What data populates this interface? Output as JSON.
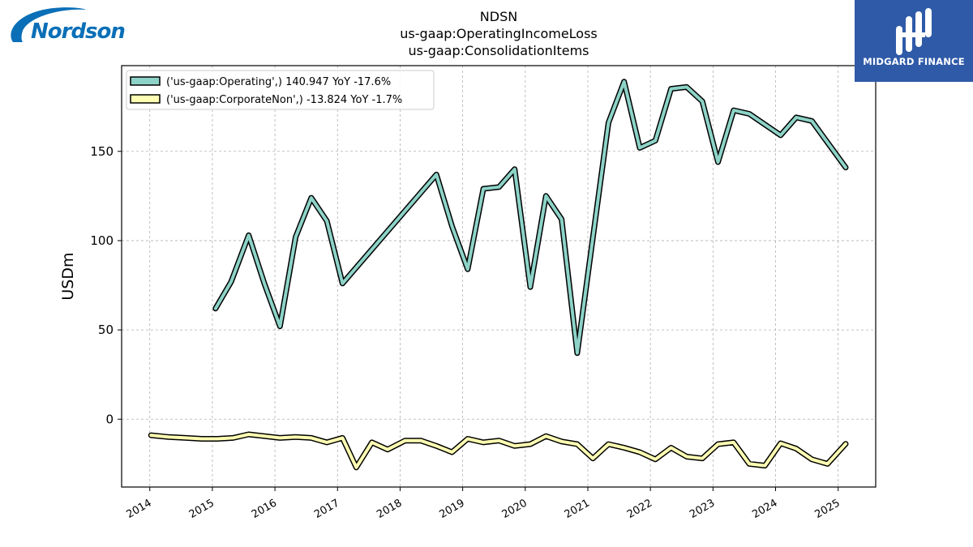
{
  "logos": {
    "left": {
      "text": "Nordson",
      "color": "#0a6fb7"
    },
    "right": {
      "text": "MIDGARD FINANCE",
      "background": "#2f5aa8"
    }
  },
  "chart_data": {
    "type": "line",
    "title_lines": [
      "NDSN",
      "us-gaap:OperatingIncomeLoss",
      "us-gaap:ConsolidationItems"
    ],
    "xlabel": "",
    "ylabel": "USDm",
    "xlim": [
      2013.55,
      2025.6
    ],
    "ylim": [
      -38,
      198
    ],
    "xticks": [
      2014,
      2015,
      2016,
      2017,
      2018,
      2019,
      2020,
      2021,
      2022,
      2023,
      2024,
      2025
    ],
    "xtick_labels": [
      "2014",
      "2015",
      "2016",
      "2017",
      "2018",
      "2019",
      "2020",
      "2021",
      "2022",
      "2023",
      "2024",
      "2025"
    ],
    "yticks": [
      0,
      50,
      100,
      150
    ],
    "ytick_labels": [
      "0",
      "50",
      "100",
      "150"
    ],
    "grid": true,
    "legend_position": "top-left",
    "series": [
      {
        "name": "('us-gaap:Operating',) 140.947 YoY -17.6%",
        "color": "#8dd3c7",
        "points": [
          [
            2015.05,
            62
          ],
          [
            2015.3,
            77
          ],
          [
            2015.58,
            103
          ],
          [
            2015.83,
            76
          ],
          [
            2016.08,
            52
          ],
          [
            2016.33,
            102
          ],
          [
            2016.58,
            124
          ],
          [
            2016.83,
            111
          ],
          [
            2017.08,
            76
          ],
          [
            2018.58,
            137
          ],
          [
            2018.83,
            108
          ],
          [
            2019.08,
            84
          ],
          [
            2019.33,
            129
          ],
          [
            2019.58,
            130
          ],
          [
            2019.83,
            140
          ],
          [
            2020.08,
            74
          ],
          [
            2020.33,
            125
          ],
          [
            2020.58,
            112
          ],
          [
            2020.83,
            37
          ],
          [
            2021.33,
            166
          ],
          [
            2021.58,
            189
          ],
          [
            2021.83,
            152
          ],
          [
            2022.08,
            156
          ],
          [
            2022.33,
            185
          ],
          [
            2022.58,
            186
          ],
          [
            2022.83,
            178
          ],
          [
            2023.08,
            144
          ],
          [
            2023.33,
            173
          ],
          [
            2023.58,
            171
          ],
          [
            2024.08,
            159
          ],
          [
            2024.33,
            169
          ],
          [
            2024.58,
            167
          ],
          [
            2025.12,
            140.947
          ]
        ]
      },
      {
        "name": "('us-gaap:CorporateNon',) -13.824 YoY -1.7%",
        "color": "#ffffb3",
        "points": [
          [
            2014.02,
            -9
          ],
          [
            2014.3,
            -10
          ],
          [
            2014.58,
            -10.5
          ],
          [
            2014.83,
            -11
          ],
          [
            2015.08,
            -11
          ],
          [
            2015.33,
            -10.5
          ],
          [
            2015.58,
            -8.5
          ],
          [
            2015.83,
            -9.5
          ],
          [
            2016.08,
            -10.5
          ],
          [
            2016.33,
            -10
          ],
          [
            2016.58,
            -10.5
          ],
          [
            2016.83,
            -13
          ],
          [
            2017.08,
            -10.5
          ],
          [
            2017.3,
            -27
          ],
          [
            2017.55,
            -13
          ],
          [
            2017.8,
            -17
          ],
          [
            2018.08,
            -12
          ],
          [
            2018.33,
            -12
          ],
          [
            2018.58,
            -15
          ],
          [
            2018.83,
            -18.5
          ],
          [
            2019.08,
            -11
          ],
          [
            2019.33,
            -13
          ],
          [
            2019.58,
            -12
          ],
          [
            2019.83,
            -15
          ],
          [
            2020.08,
            -14
          ],
          [
            2020.33,
            -9.5
          ],
          [
            2020.58,
            -12.5
          ],
          [
            2020.83,
            -14
          ],
          [
            2021.08,
            -22
          ],
          [
            2021.33,
            -14
          ],
          [
            2021.58,
            -16
          ],
          [
            2021.83,
            -18.5
          ],
          [
            2022.08,
            -22.5
          ],
          [
            2022.33,
            -16
          ],
          [
            2022.58,
            -21
          ],
          [
            2022.83,
            -22
          ],
          [
            2023.08,
            -14
          ],
          [
            2023.33,
            -13
          ],
          [
            2023.58,
            -25
          ],
          [
            2023.83,
            -26
          ],
          [
            2024.08,
            -13.5
          ],
          [
            2024.33,
            -16.5
          ],
          [
            2024.58,
            -22.5
          ],
          [
            2024.83,
            -25
          ],
          [
            2025.12,
            -13.824
          ]
        ]
      }
    ]
  }
}
